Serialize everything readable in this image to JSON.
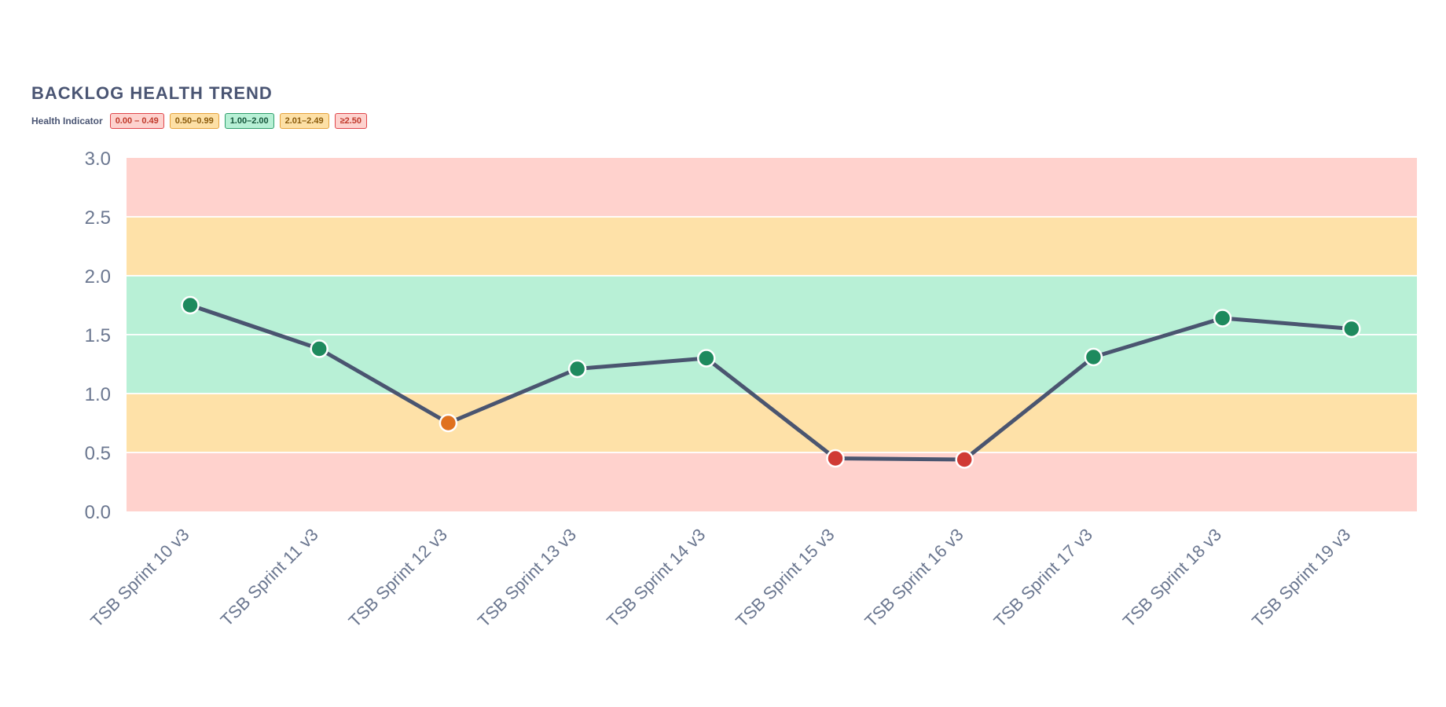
{
  "chart_data": {
    "type": "line",
    "title": "BACKLOG HEALTH TREND",
    "legend": {
      "label": "Health Indicator",
      "placement": "top-left",
      "items": [
        {
          "text": "0.00 – 0.49",
          "bg": "#fdd2ce",
          "border": "#e0454a",
          "color": "#c0392b"
        },
        {
          "text": "0.50–0.99",
          "bg": "#fde0a6",
          "border": "#e6a23c",
          "color": "#8a5a0b"
        },
        {
          "text": "1.00–2.00",
          "bg": "#b7f0d5",
          "border": "#2e9e6b",
          "color": "#14553a"
        },
        {
          "text": "2.01–2.49",
          "bg": "#fde0a6",
          "border": "#e6a23c",
          "color": "#8a5a0b"
        },
        {
          "text": "≥2.50",
          "bg": "#fdd2ce",
          "border": "#e0454a",
          "color": "#c0392b"
        }
      ]
    },
    "xlabel": "",
    "ylabel": "",
    "ylim": [
      0,
      3
    ],
    "yticks": [
      "0.0",
      "0.5",
      "1.0",
      "1.5",
      "2.0",
      "2.5",
      "3.0"
    ],
    "categories": [
      "TSB Sprint 10 v3",
      "TSB Sprint 11 v3",
      "TSB Sprint 12 v3",
      "TSB Sprint 13 v3",
      "TSB Sprint 14 v3",
      "TSB Sprint 15 v3",
      "TSB Sprint 16 v3",
      "TSB Sprint 17 v3",
      "TSB Sprint 18 v3",
      "TSB Sprint 19 v3"
    ],
    "series": [
      {
        "values": [
          1.75,
          1.38,
          0.75,
          1.21,
          1.3,
          0.45,
          0.44,
          1.31,
          1.64,
          1.55
        ],
        "line_color": "#4a5570"
      }
    ],
    "bands": [
      {
        "from": 0.0,
        "to": 0.5,
        "color": "#ffd2cd"
      },
      {
        "from": 0.5,
        "to": 1.0,
        "color": "#fee1a8"
      },
      {
        "from": 1.0,
        "to": 2.0,
        "color": "#b8f0d6"
      },
      {
        "from": 2.0,
        "to": 2.5,
        "color": "#fee1a8"
      },
      {
        "from": 2.5,
        "to": 3.0,
        "color": "#ffd2cd"
      }
    ],
    "point_colors": {
      "good": "#1e8a5e",
      "warn": "#e0711f",
      "bad": "#d03a34"
    },
    "grid": true,
    "axis_text_color": "#6b7790"
  }
}
